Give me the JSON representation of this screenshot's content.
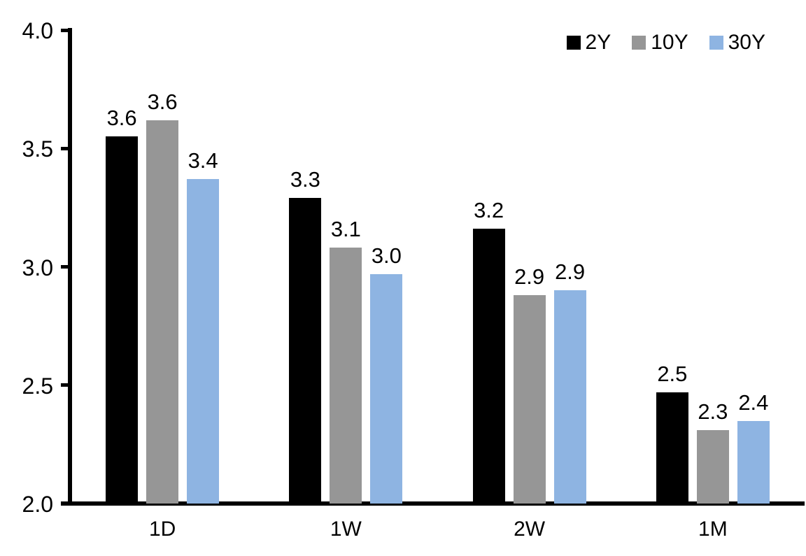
{
  "chart_data": {
    "type": "bar",
    "title": "",
    "categories": [
      "1D",
      "1W",
      "2W",
      "1M"
    ],
    "series": [
      {
        "name": "2Y",
        "color": "#000000",
        "values": [
          3.55,
          3.29,
          3.16,
          2.47
        ],
        "labels": [
          "3.6",
          "3.3",
          "3.2",
          "2.5"
        ]
      },
      {
        "name": "10Y",
        "color": "#969696",
        "values": [
          3.62,
          3.08,
          2.88,
          2.31
        ],
        "labels": [
          "3.6",
          "3.1",
          "2.9",
          "2.3"
        ]
      },
      {
        "name": "30Y",
        "color": "#8EB4E2",
        "values": [
          3.37,
          2.97,
          2.9,
          2.35
        ],
        "labels": [
          "3.4",
          "3.0",
          "2.9",
          "2.4"
        ]
      }
    ],
    "ylim": [
      2.0,
      4.0
    ],
    "yticks": [
      2.0,
      2.5,
      3.0,
      3.5,
      4.0
    ],
    "ytick_labels": [
      "2.0",
      "2.5",
      "3.0",
      "3.5",
      "4.0"
    ],
    "xlabel": "",
    "ylabel": "",
    "grid": false,
    "legend_position": "top-right",
    "axis_color": "#000000",
    "data_labels_shown": true
  }
}
